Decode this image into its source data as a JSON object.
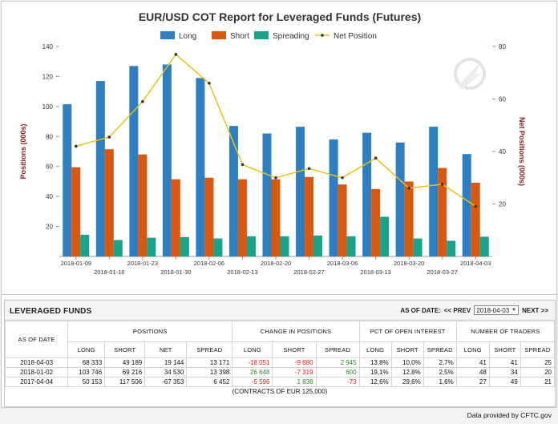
{
  "chart_data": {
    "type": "bar",
    "title": "EUR/USD COT Report for Leveraged Funds (Futures)",
    "ylabel": "Positions (000s)",
    "y2label": "Net Positions (000s)",
    "ylim": [
      0,
      140
    ],
    "y2lim": [
      0,
      80
    ],
    "yticks": [
      20,
      40,
      60,
      80,
      100,
      120,
      140
    ],
    "y2ticks": [
      20,
      40,
      60,
      80
    ],
    "legend_position": "top",
    "grid": false,
    "categories": [
      "2018-01-09",
      "2018-01-16",
      "2018-01-23",
      "2018-01-30",
      "2018-02-06",
      "2018-02-13",
      "2018-02-20",
      "2018-02-27",
      "2018-03-06",
      "2018-03-13",
      "2018-03-20",
      "2018-03-27",
      "2018-04-03"
    ],
    "series": [
      {
        "name": "Long",
        "color": "#2f7ec2",
        "axis": "left",
        "type": "bar",
        "values": [
          101.5,
          117,
          127,
          128,
          119,
          87,
          82,
          86.5,
          78,
          82.5,
          76,
          86.5,
          68.3
        ]
      },
      {
        "name": "Short",
        "color": "#d9580f",
        "axis": "left",
        "type": "bar",
        "values": [
          59.5,
          71.5,
          68,
          51.5,
          52.5,
          51.5,
          51.5,
          53,
          48,
          45,
          50,
          59,
          49.2
        ]
      },
      {
        "name": "Spreading",
        "color": "#1aa38a",
        "axis": "left",
        "type": "bar",
        "values": [
          14.5,
          11,
          12.5,
          13,
          12,
          13.5,
          13.5,
          14,
          13.5,
          26.5,
          12,
          10.5,
          13.2
        ]
      },
      {
        "name": "Net Position",
        "color": "#e4c21c",
        "axis": "right",
        "type": "line",
        "values": [
          42,
          45.5,
          59,
          77,
          66,
          35,
          30,
          33.5,
          30,
          37.5,
          26,
          27.5,
          19.1
        ]
      }
    ]
  },
  "table": {
    "title": "LEVERAGED FUNDS",
    "as_of_label": "AS OF DATE:",
    "prev_label": "<< PREV",
    "selected_date": "2018-04-03",
    "next_label": "NEXT >>",
    "col_as_of": "AS OF DATE",
    "groups": [
      "POSITIONS",
      "CHANGE IN POSITIONS",
      "PCT OF OPEN INTEREST",
      "NUMBER OF TRADERS"
    ],
    "subheaders": [
      "LONG",
      "SHORT",
      "NET",
      "SPREAD",
      "LONG",
      "SHORT",
      "SPREAD",
      "LONG",
      "SHORT",
      "SPREAD",
      "LONG",
      "SHORT",
      "SPREAD"
    ],
    "rows": [
      {
        "date": "2018-04-03",
        "cells": [
          {
            "v": "68 333"
          },
          {
            "v": "49 189"
          },
          {
            "v": "19 144"
          },
          {
            "v": "13 171"
          },
          {
            "v": "-18 051",
            "c": "red"
          },
          {
            "v": "-9 680",
            "c": "red"
          },
          {
            "v": "2 945",
            "c": "green"
          },
          {
            "v": "13,8%"
          },
          {
            "v": "10,0%"
          },
          {
            "v": "2,7%"
          },
          {
            "v": "41"
          },
          {
            "v": "41"
          },
          {
            "v": "25"
          }
        ]
      },
      {
        "date": "2018-01-02",
        "cells": [
          {
            "v": "103 746"
          },
          {
            "v": "69 216"
          },
          {
            "v": "34 530"
          },
          {
            "v": "13 398"
          },
          {
            "v": "26 648",
            "c": "green"
          },
          {
            "v": "-7 319",
            "c": "red"
          },
          {
            "v": "600",
            "c": "green"
          },
          {
            "v": "19,1%"
          },
          {
            "v": "12,8%"
          },
          {
            "v": "2,5%"
          },
          {
            "v": "48"
          },
          {
            "v": "34"
          },
          {
            "v": "20"
          }
        ]
      },
      {
        "date": "2017-04-04",
        "cells": [
          {
            "v": "50 153"
          },
          {
            "v": "117 506"
          },
          {
            "v": "-67 353"
          },
          {
            "v": "6 452"
          },
          {
            "v": "-5 596",
            "c": "red"
          },
          {
            "v": "1 838",
            "c": "green"
          },
          {
            "v": "-73",
            "c": "red"
          },
          {
            "v": "12,6%"
          },
          {
            "v": "29,6%"
          },
          {
            "v": "1,6%"
          },
          {
            "v": "27"
          },
          {
            "v": "49"
          },
          {
            "v": "21"
          }
        ]
      }
    ],
    "note": "(CONTRACTS OF EUR 125,000)"
  },
  "footer": "Data provided by CFTC.gov"
}
